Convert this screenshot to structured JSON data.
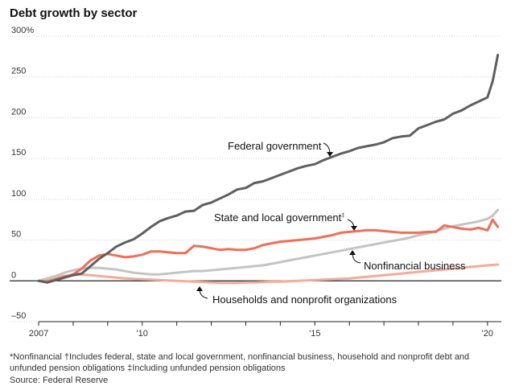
{
  "chart_data": {
    "type": "line",
    "title": "Debt growth by sector",
    "y_unit_suffix": "%",
    "ylim": [
      -50,
      300
    ],
    "yticks": [
      -50,
      0,
      50,
      100,
      150,
      200,
      250,
      300
    ],
    "ytick_labels": [
      "–50",
      "0",
      "50",
      "100",
      "150",
      "200",
      "250",
      "300%"
    ],
    "xlim": [
      2007.0,
      2020.4
    ],
    "xticks": [
      2007,
      2008,
      2009,
      2010,
      2011,
      2012,
      2013,
      2014,
      2015,
      2016,
      2017,
      2018,
      2019,
      2020
    ],
    "xtick_labels": [
      {
        "x": 2007,
        "label": "2007"
      },
      {
        "x": 2010,
        "label": "'10"
      },
      {
        "x": 2015,
        "label": "'15"
      },
      {
        "x": 2020,
        "label": "'20"
      }
    ],
    "grid": "horizontal",
    "series": [
      {
        "name": "Federal government",
        "color": "#5f5f5f",
        "points": [
          [
            2007.0,
            0
          ],
          [
            2007.25,
            -2
          ],
          [
            2007.5,
            1
          ],
          [
            2007.75,
            4
          ],
          [
            2008.0,
            7
          ],
          [
            2008.25,
            9
          ],
          [
            2008.5,
            18
          ],
          [
            2008.75,
            27
          ],
          [
            2009.0,
            34
          ],
          [
            2009.25,
            42
          ],
          [
            2009.5,
            47
          ],
          [
            2009.75,
            51
          ],
          [
            2010.0,
            58
          ],
          [
            2010.25,
            66
          ],
          [
            2010.5,
            73
          ],
          [
            2010.75,
            77
          ],
          [
            2011.0,
            80
          ],
          [
            2011.25,
            85
          ],
          [
            2011.5,
            86
          ],
          [
            2011.75,
            93
          ],
          [
            2012.0,
            96
          ],
          [
            2012.25,
            101
          ],
          [
            2012.5,
            106
          ],
          [
            2012.75,
            112
          ],
          [
            2013.0,
            114
          ],
          [
            2013.25,
            120
          ],
          [
            2013.5,
            122
          ],
          [
            2013.75,
            126
          ],
          [
            2014.0,
            130
          ],
          [
            2014.25,
            134
          ],
          [
            2014.5,
            138
          ],
          [
            2014.75,
            141
          ],
          [
            2015.0,
            143
          ],
          [
            2015.25,
            148
          ],
          [
            2015.5,
            152
          ],
          [
            2015.75,
            156
          ],
          [
            2016.0,
            159
          ],
          [
            2016.25,
            163
          ],
          [
            2016.5,
            165
          ],
          [
            2016.75,
            167
          ],
          [
            2017.0,
            170
          ],
          [
            2017.25,
            175
          ],
          [
            2017.5,
            177
          ],
          [
            2017.75,
            178
          ],
          [
            2018.0,
            187
          ],
          [
            2018.25,
            191
          ],
          [
            2018.5,
            195
          ],
          [
            2018.75,
            198
          ],
          [
            2019.0,
            205
          ],
          [
            2019.25,
            209
          ],
          [
            2019.5,
            215
          ],
          [
            2019.75,
            220
          ],
          [
            2020.0,
            225
          ],
          [
            2020.15,
            245
          ],
          [
            2020.3,
            277
          ]
        ]
      },
      {
        "name": "State and local government",
        "color": "#ef6f57",
        "points": [
          [
            2007.0,
            0
          ],
          [
            2007.25,
            -1
          ],
          [
            2007.5,
            2
          ],
          [
            2007.75,
            5
          ],
          [
            2008.0,
            8
          ],
          [
            2008.25,
            15
          ],
          [
            2008.5,
            25
          ],
          [
            2008.75,
            31
          ],
          [
            2009.0,
            33
          ],
          [
            2009.25,
            31
          ],
          [
            2009.5,
            29
          ],
          [
            2009.75,
            30
          ],
          [
            2010.0,
            32
          ],
          [
            2010.25,
            36
          ],
          [
            2010.5,
            36
          ],
          [
            2010.75,
            35
          ],
          [
            2011.0,
            34
          ],
          [
            2011.25,
            34
          ],
          [
            2011.5,
            43
          ],
          [
            2011.75,
            42
          ],
          [
            2012.0,
            40
          ],
          [
            2012.25,
            38
          ],
          [
            2012.5,
            39
          ],
          [
            2012.75,
            38
          ],
          [
            2013.0,
            38
          ],
          [
            2013.25,
            40
          ],
          [
            2013.5,
            44
          ],
          [
            2013.75,
            46
          ],
          [
            2014.0,
            48
          ],
          [
            2014.25,
            49
          ],
          [
            2014.5,
            50
          ],
          [
            2014.75,
            51
          ],
          [
            2015.0,
            52
          ],
          [
            2015.25,
            54
          ],
          [
            2015.5,
            56
          ],
          [
            2015.75,
            59
          ],
          [
            2016.0,
            60
          ],
          [
            2016.25,
            61
          ],
          [
            2016.5,
            62
          ],
          [
            2016.75,
            62
          ],
          [
            2017.0,
            61
          ],
          [
            2017.25,
            60
          ],
          [
            2017.5,
            59
          ],
          [
            2017.75,
            59
          ],
          [
            2018.0,
            59
          ],
          [
            2018.25,
            60
          ],
          [
            2018.5,
            60
          ],
          [
            2018.75,
            68
          ],
          [
            2019.0,
            66
          ],
          [
            2019.25,
            64
          ],
          [
            2019.5,
            63
          ],
          [
            2019.75,
            65
          ],
          [
            2020.0,
            62
          ],
          [
            2020.15,
            75
          ],
          [
            2020.3,
            66
          ]
        ]
      },
      {
        "name": "Nonfinancial business",
        "color": "#c4c4c4",
        "points": [
          [
            2007.0,
            0
          ],
          [
            2007.25,
            3
          ],
          [
            2007.5,
            6
          ],
          [
            2007.75,
            10
          ],
          [
            2008.0,
            13
          ],
          [
            2008.25,
            15
          ],
          [
            2008.5,
            16
          ],
          [
            2008.75,
            16
          ],
          [
            2009.0,
            15
          ],
          [
            2009.25,
            14
          ],
          [
            2009.5,
            12
          ],
          [
            2009.75,
            10
          ],
          [
            2010.0,
            9
          ],
          [
            2010.25,
            8
          ],
          [
            2010.5,
            8
          ],
          [
            2010.75,
            9
          ],
          [
            2011.0,
            10
          ],
          [
            2011.25,
            11
          ],
          [
            2011.5,
            12
          ],
          [
            2011.75,
            12
          ],
          [
            2012.0,
            13
          ],
          [
            2012.25,
            14
          ],
          [
            2012.5,
            15
          ],
          [
            2012.75,
            16
          ],
          [
            2013.0,
            17
          ],
          [
            2013.25,
            18
          ],
          [
            2013.5,
            19
          ],
          [
            2013.75,
            21
          ],
          [
            2014.0,
            23
          ],
          [
            2014.25,
            25
          ],
          [
            2014.5,
            27
          ],
          [
            2014.75,
            29
          ],
          [
            2015.0,
            31
          ],
          [
            2015.25,
            33
          ],
          [
            2015.5,
            35
          ],
          [
            2015.75,
            37
          ],
          [
            2016.0,
            39
          ],
          [
            2016.25,
            41
          ],
          [
            2016.5,
            43
          ],
          [
            2016.75,
            45
          ],
          [
            2017.0,
            47
          ],
          [
            2017.25,
            49
          ],
          [
            2017.5,
            51
          ],
          [
            2017.75,
            53
          ],
          [
            2018.0,
            56
          ],
          [
            2018.25,
            58
          ],
          [
            2018.5,
            61
          ],
          [
            2018.75,
            64
          ],
          [
            2019.0,
            67
          ],
          [
            2019.25,
            69
          ],
          [
            2019.5,
            71
          ],
          [
            2019.75,
            73
          ],
          [
            2020.0,
            76
          ],
          [
            2020.15,
            80
          ],
          [
            2020.3,
            87
          ]
        ]
      },
      {
        "name": "Households and nonprofit organizations",
        "color": "#f3ab9a",
        "points": [
          [
            2007.0,
            0
          ],
          [
            2007.25,
            2
          ],
          [
            2007.5,
            4
          ],
          [
            2007.75,
            6
          ],
          [
            2008.0,
            7
          ],
          [
            2008.25,
            8
          ],
          [
            2008.5,
            7
          ],
          [
            2008.75,
            6
          ],
          [
            2009.0,
            5
          ],
          [
            2009.25,
            4
          ],
          [
            2009.5,
            3
          ],
          [
            2009.75,
            2.5
          ],
          [
            2010.0,
            2
          ],
          [
            2010.25,
            1.5
          ],
          [
            2010.5,
            1
          ],
          [
            2010.75,
            0.5
          ],
          [
            2011.0,
            0
          ],
          [
            2011.25,
            -0.5
          ],
          [
            2011.5,
            -1
          ],
          [
            2011.75,
            -1.5
          ],
          [
            2012.0,
            -2
          ],
          [
            2012.25,
            -2.5
          ],
          [
            2012.5,
            -2.5
          ],
          [
            2012.75,
            -2.5
          ],
          [
            2013.0,
            -2
          ],
          [
            2013.25,
            -2
          ],
          [
            2013.5,
            -1.5
          ],
          [
            2013.75,
            -1
          ],
          [
            2014.0,
            -1
          ],
          [
            2014.25,
            -0.5
          ],
          [
            2014.5,
            0
          ],
          [
            2014.75,
            0.5
          ],
          [
            2015.0,
            1
          ],
          [
            2015.25,
            1.5
          ],
          [
            2015.5,
            2
          ],
          [
            2015.75,
            2.5
          ],
          [
            2016.0,
            3
          ],
          [
            2016.25,
            4
          ],
          [
            2016.5,
            5
          ],
          [
            2016.75,
            6
          ],
          [
            2017.0,
            7
          ],
          [
            2017.25,
            8
          ],
          [
            2017.5,
            9
          ],
          [
            2017.75,
            10
          ],
          [
            2018.0,
            11
          ],
          [
            2018.25,
            12
          ],
          [
            2018.5,
            13
          ],
          [
            2018.75,
            14
          ],
          [
            2019.0,
            15
          ],
          [
            2019.25,
            16
          ],
          [
            2019.5,
            17
          ],
          [
            2019.75,
            18
          ],
          [
            2020.0,
            19
          ],
          [
            2020.15,
            19.5
          ],
          [
            2020.3,
            20
          ]
        ]
      }
    ],
    "annotations": [
      {
        "id": "fed",
        "text": "Federal government",
        "marker": ""
      },
      {
        "id": "state",
        "text": "State and local government",
        "marker": "‡"
      },
      {
        "id": "biz",
        "text": "Nonfinancial business",
        "marker": ""
      },
      {
        "id": "hh",
        "text": "Households and nonprofit organizations",
        "marker": ""
      }
    ]
  },
  "footnotes": {
    "line1": "*Nonfinancial   †Includes federal, state and local government, nonfinancial business, household and nonprofit debt and",
    "line2": "unfunded pension obligations   ‡Including unfunded pension obligations",
    "source": "Source: Federal Reserve"
  }
}
